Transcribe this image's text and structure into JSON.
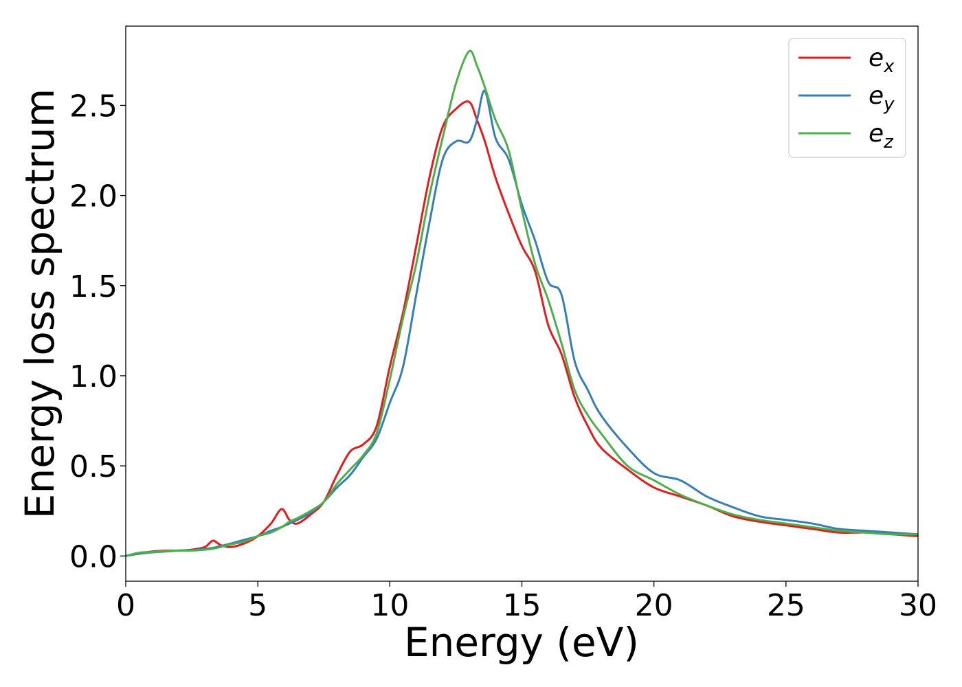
{
  "chart_data": {
    "type": "line",
    "title": "",
    "xlabel": "Energy (eV)",
    "ylabel": "Energy loss spectrum",
    "xlim": [
      0,
      30
    ],
    "ylim": [
      -0.14,
      2.94
    ],
    "xticks": [
      0,
      5,
      10,
      15,
      20,
      25,
      30
    ],
    "xtick_labels": [
      "0",
      "5",
      "10",
      "15",
      "20",
      "25",
      "30"
    ],
    "yticks": [
      0.0,
      0.5,
      1.0,
      1.5,
      2.0,
      2.5
    ],
    "ytick_labels": [
      "0.0",
      "0.5",
      "1.0",
      "1.5",
      "2.0",
      "2.5"
    ],
    "grid": false,
    "legend_position": "top-right",
    "x": [
      0,
      0.5,
      1,
      1.5,
      2,
      2.5,
      3,
      3.3,
      3.6,
      4,
      4.5,
      5,
      5.5,
      5.9,
      6.2,
      6.5,
      7,
      7.5,
      8,
      8.5,
      9,
      9.5,
      10,
      10.5,
      11,
      11.5,
      12,
      12.5,
      13,
      13.3,
      13.6,
      14,
      14.5,
      15,
      15.5,
      16,
      16.5,
      17,
      17.5,
      18,
      19,
      20,
      21,
      22,
      23,
      24,
      25,
      26,
      27,
      28,
      29,
      30
    ],
    "series": [
      {
        "name": "e",
        "subscript": "x",
        "color": "#e41a1c",
        "values": [
          0.0,
          0.015,
          0.025,
          0.03,
          0.03,
          0.035,
          0.05,
          0.085,
          0.06,
          0.05,
          0.07,
          0.11,
          0.18,
          0.26,
          0.2,
          0.18,
          0.23,
          0.3,
          0.45,
          0.58,
          0.62,
          0.72,
          1.05,
          1.35,
          1.72,
          2.1,
          2.38,
          2.48,
          2.52,
          2.42,
          2.3,
          2.1,
          1.9,
          1.72,
          1.58,
          1.28,
          1.12,
          0.88,
          0.72,
          0.6,
          0.48,
          0.38,
          0.33,
          0.28,
          0.22,
          0.19,
          0.17,
          0.15,
          0.13,
          0.13,
          0.12,
          0.11
        ]
      },
      {
        "name": "e",
        "subscript": "y",
        "color": "#377eb8",
        "values": [
          0.0,
          0.012,
          0.02,
          0.025,
          0.03,
          0.032,
          0.04,
          0.045,
          0.055,
          0.07,
          0.09,
          0.11,
          0.14,
          0.16,
          0.18,
          0.2,
          0.24,
          0.3,
          0.38,
          0.45,
          0.55,
          0.65,
          0.85,
          1.05,
          1.45,
          1.85,
          2.2,
          2.3,
          2.3,
          2.42,
          2.58,
          2.32,
          2.2,
          1.95,
          1.75,
          1.52,
          1.45,
          1.08,
          0.92,
          0.78,
          0.6,
          0.46,
          0.42,
          0.33,
          0.27,
          0.22,
          0.2,
          0.18,
          0.15,
          0.14,
          0.13,
          0.12
        ]
      },
      {
        "name": "e",
        "subscript": "z",
        "color": "#4daf4a",
        "values": [
          0.0,
          0.018,
          0.022,
          0.028,
          0.03,
          0.03,
          0.035,
          0.04,
          0.05,
          0.065,
          0.08,
          0.11,
          0.13,
          0.16,
          0.19,
          0.21,
          0.25,
          0.3,
          0.4,
          0.48,
          0.56,
          0.68,
          0.98,
          1.32,
          1.62,
          2.0,
          2.32,
          2.62,
          2.8,
          2.72,
          2.6,
          2.42,
          2.25,
          1.92,
          1.62,
          1.42,
          1.18,
          0.92,
          0.78,
          0.68,
          0.5,
          0.42,
          0.34,
          0.28,
          0.23,
          0.2,
          0.18,
          0.16,
          0.14,
          0.13,
          0.12,
          0.12
        ]
      }
    ]
  }
}
